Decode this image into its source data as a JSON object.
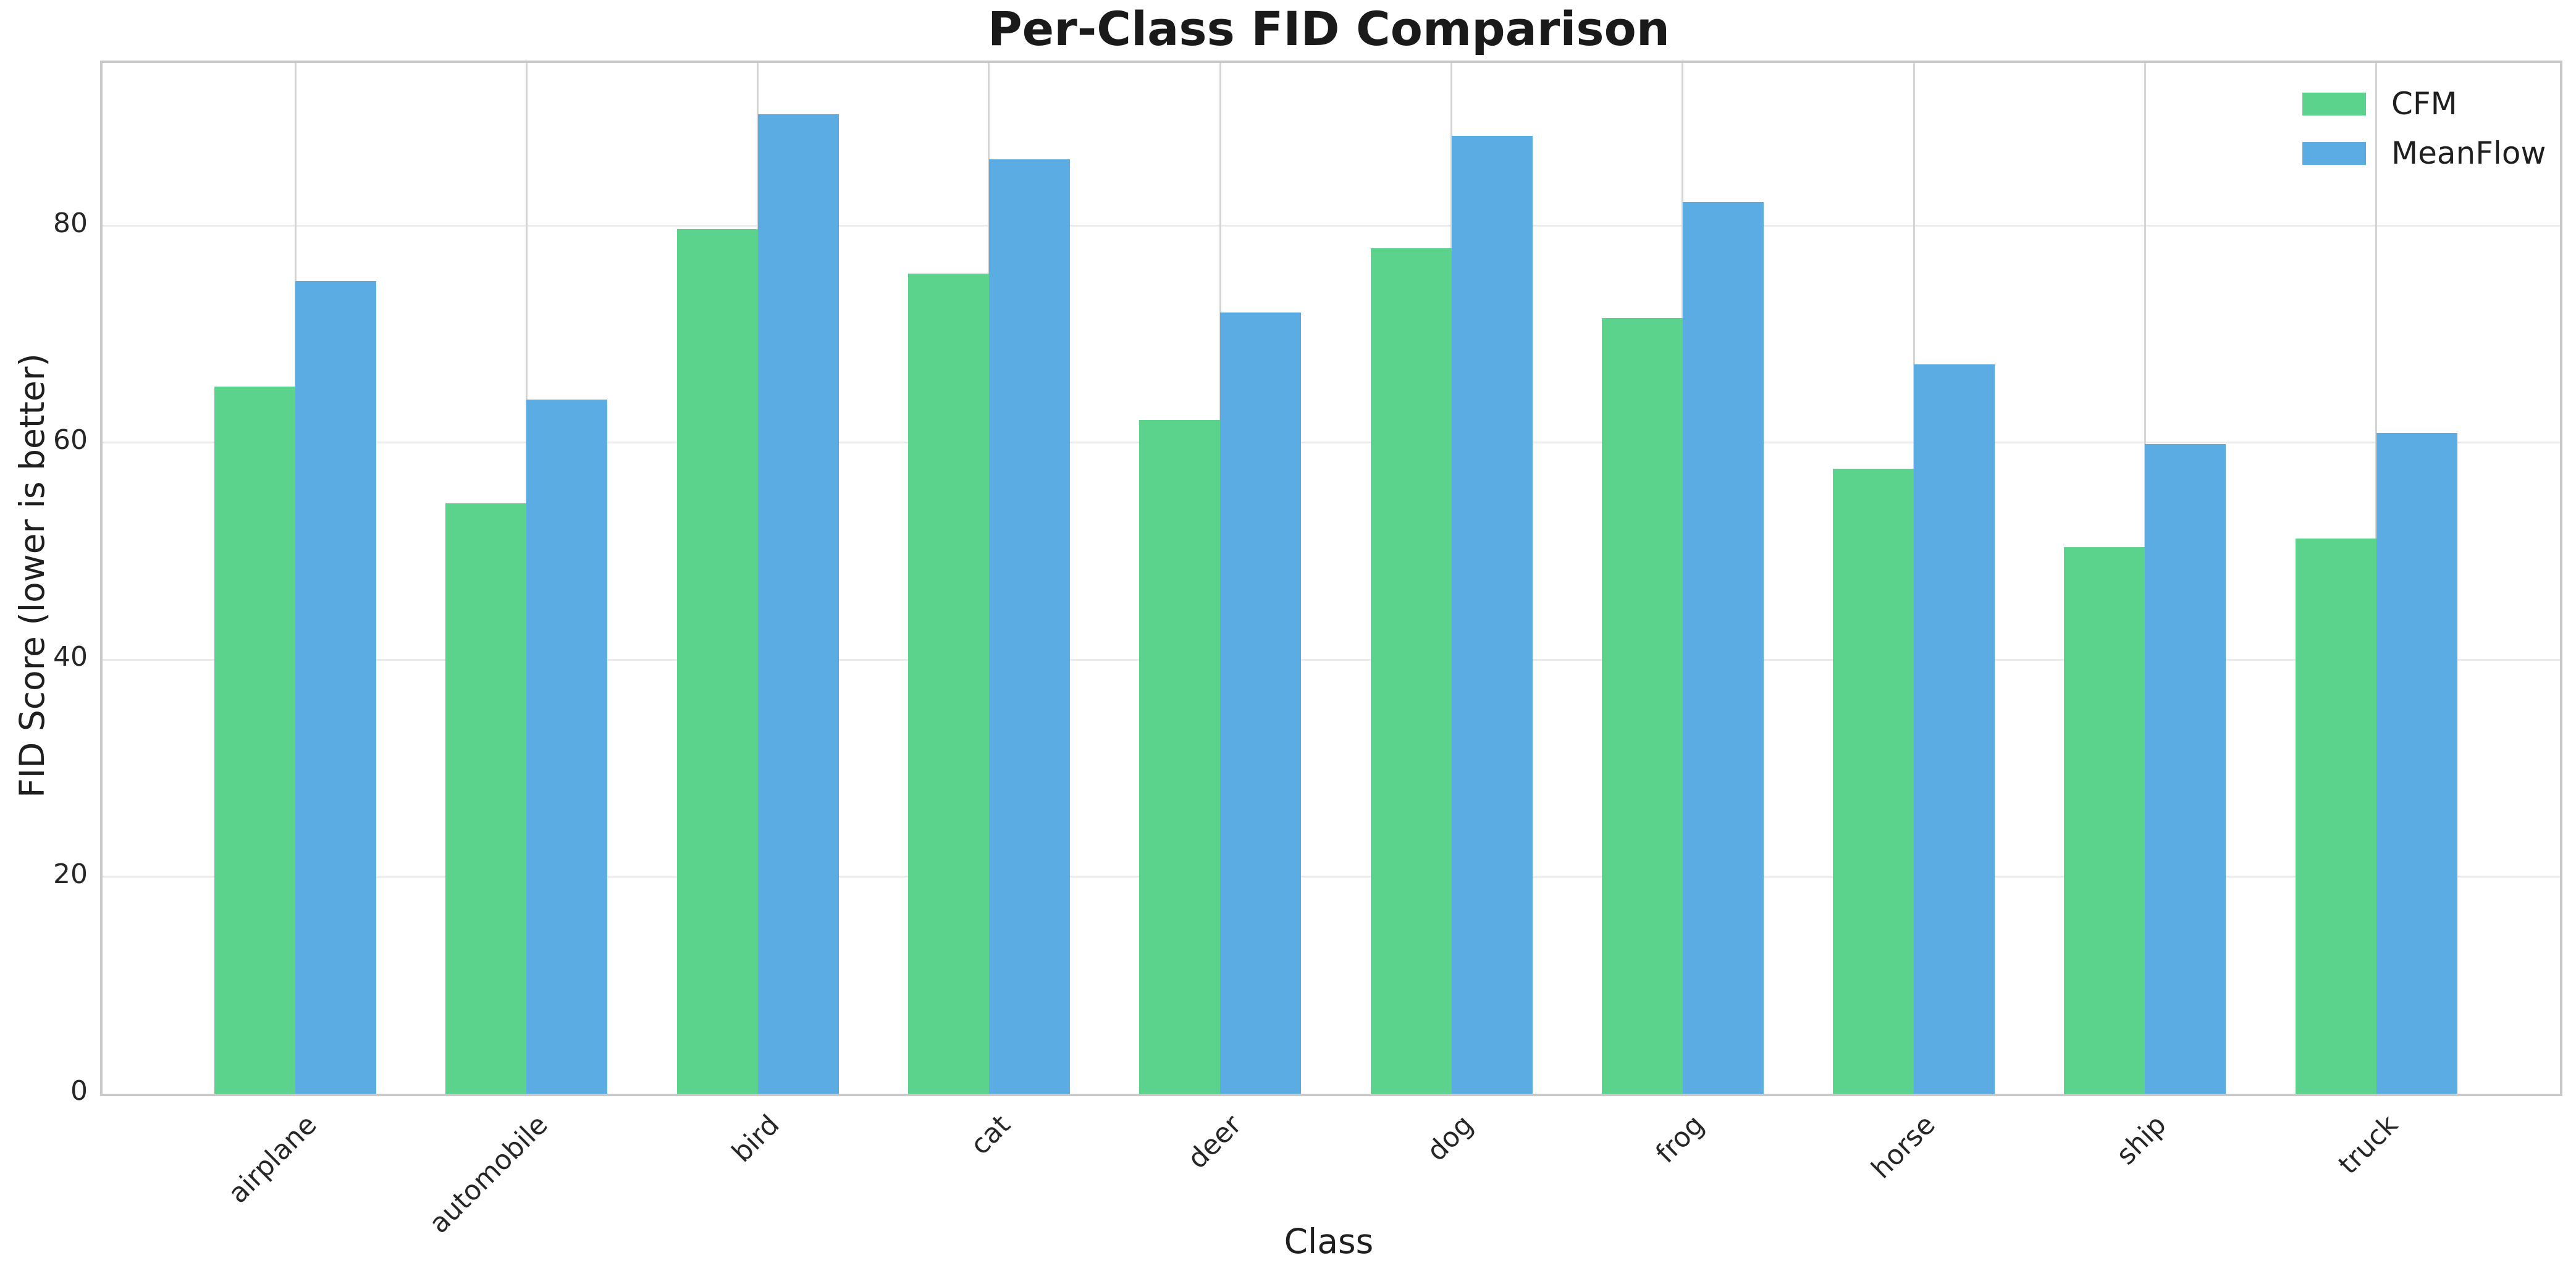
{
  "chart_data": {
    "type": "bar",
    "title": "Per-Class FID Comparison",
    "xlabel": "Class",
    "ylabel": "FID Score (lower is better)",
    "categories": [
      "airplane",
      "automobile",
      "bird",
      "cat",
      "deer",
      "dog",
      "frog",
      "horse",
      "ship",
      "truck"
    ],
    "series": [
      {
        "name": "CFM",
        "color": "#5BD38D",
        "values": [
          65.2,
          54.4,
          79.7,
          75.6,
          62.1,
          77.9,
          71.5,
          57.6,
          50.4,
          51.2
        ]
      },
      {
        "name": "MeanFlow",
        "color": "#5AACE2",
        "values": [
          74.9,
          64.0,
          90.3,
          86.1,
          72.0,
          88.3,
          82.2,
          67.2,
          59.9,
          60.9
        ]
      }
    ],
    "ylim": [
      0,
      95
    ],
    "yticks": [
      0,
      20,
      40,
      60,
      80
    ],
    "grid": true,
    "legend_position": "upper right",
    "bar_width_fraction": 0.35,
    "colors": {
      "grid_horizontal": "#EBEBEB",
      "grid_vertical": "#D4D4D4",
      "spine": "#C9C9C9",
      "text": "#1F1F1F",
      "background": "#FFFFFF"
    }
  }
}
